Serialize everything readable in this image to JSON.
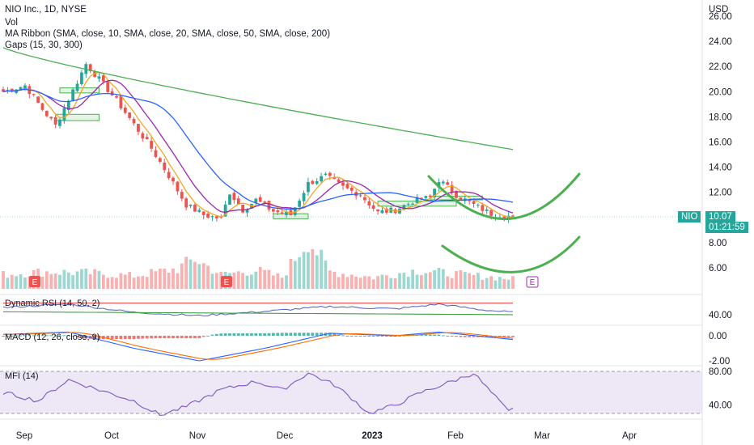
{
  "header": {
    "symbol_line": "NIO Inc., 1D, NYSE",
    "indicators": [
      "Vol",
      "MA Ribbon (SMA, close, 10, SMA, close, 20, SMA, close, 50, SMA, close, 200)",
      "Gaps (15, 30, 300)"
    ],
    "currency": "USD"
  },
  "price_tag": {
    "symbol": "NIO",
    "price": "10.07",
    "countdown": "01:21:59",
    "color": "#26a69a"
  },
  "earnings_marker": "E",
  "panes": {
    "rsi_label": "Dynamic RSI (14, 50, 2)",
    "macd_label": "MACD (12, 26, close, 9)",
    "mfi_label": "MFI (14)"
  },
  "colors": {
    "up": "#26a69a",
    "down": "#ef5350",
    "sma10": "#f5a623",
    "sma20": "#9c27b0",
    "sma50": "#2962ff",
    "sma200": "#4caf50",
    "annotation": "#4caf50"
  },
  "chart_data": {
    "type": "candlestick",
    "x_labels": [
      "Sep",
      "Oct",
      "Nov",
      "Dec",
      "2023",
      "Feb",
      "Mar",
      "Apr"
    ],
    "price_axis": {
      "ticks": [
        "26.00",
        "24.00",
        "22.00",
        "20.00",
        "18.00",
        "16.00",
        "14.00",
        "12.00",
        "10.00",
        "8.00",
        "6.00"
      ],
      "range": [
        4.9,
        26.0
      ]
    },
    "rsi_axis": {
      "ticks": [
        "40.00"
      ]
    },
    "macd_axis": {
      "ticks": [
        "0.00",
        "-2.00"
      ]
    },
    "mfi_axis": {
      "ticks": [
        "80.00",
        "40.00"
      ]
    },
    "bars": 118,
    "close_anchors": [
      [
        0,
        20.0
      ],
      [
        5,
        20.5
      ],
      [
        9,
        18.6
      ],
      [
        12,
        17.3
      ],
      [
        16,
        20.1
      ],
      [
        19,
        22.2
      ],
      [
        22,
        21.0
      ],
      [
        26,
        19.3
      ],
      [
        30,
        17.4
      ],
      [
        34,
        15.5
      ],
      [
        38,
        13.3
      ],
      [
        42,
        11.0
      ],
      [
        46,
        10.2
      ],
      [
        50,
        9.9
      ],
      [
        52,
        12.0
      ],
      [
        55,
        10.6
      ],
      [
        58,
        11.4
      ],
      [
        62,
        10.5
      ],
      [
        66,
        10.2
      ],
      [
        70,
        12.7
      ],
      [
        74,
        13.3
      ],
      [
        78,
        12.4
      ],
      [
        82,
        11.8
      ],
      [
        86,
        10.4
      ],
      [
        90,
        10.6
      ],
      [
        94,
        11.3
      ],
      [
        98,
        11.6
      ],
      [
        100,
        13.0
      ],
      [
        104,
        11.8
      ],
      [
        108,
        11.0
      ],
      [
        112,
        10.3
      ],
      [
        117,
        10.07
      ]
    ],
    "sma200_endpoints": [
      [
        0,
        23.5
      ],
      [
        117,
        15.4
      ]
    ],
    "volume_anchors": [
      [
        0,
        1.0
      ],
      [
        10,
        1.2
      ],
      [
        20,
        1.1
      ],
      [
        30,
        0.9
      ],
      [
        40,
        1.4
      ],
      [
        44,
        2.1
      ],
      [
        50,
        1.0
      ],
      [
        58,
        1.3
      ],
      [
        64,
        0.8
      ],
      [
        70,
        3.5
      ],
      [
        75,
        1.2
      ],
      [
        85,
        0.8
      ],
      [
        95,
        1.3
      ],
      [
        105,
        1.0
      ],
      [
        117,
        0.7
      ]
    ],
    "volume_max": 3.5,
    "rsi_anchors": [
      [
        0,
        55
      ],
      [
        15,
        62
      ],
      [
        30,
        45
      ],
      [
        45,
        38
      ],
      [
        60,
        47
      ],
      [
        75,
        57
      ],
      [
        90,
        52
      ],
      [
        100,
        62
      ],
      [
        110,
        50
      ],
      [
        117,
        45
      ]
    ],
    "rsi_band_upper": 64,
    "macd_anchors": [
      [
        0,
        0.1
      ],
      [
        15,
        0.3
      ],
      [
        30,
        -1.0
      ],
      [
        45,
        -2.0
      ],
      [
        60,
        -1.0
      ],
      [
        75,
        0.2
      ],
      [
        90,
        0.0
      ],
      [
        100,
        0.3
      ],
      [
        117,
        -0.3
      ]
    ],
    "mfi_anchors": [
      [
        0,
        55
      ],
      [
        8,
        45
      ],
      [
        15,
        70
      ],
      [
        22,
        58
      ],
      [
        30,
        45
      ],
      [
        36,
        28
      ],
      [
        42,
        38
      ],
      [
        50,
        58
      ],
      [
        58,
        68
      ],
      [
        64,
        58
      ],
      [
        70,
        78
      ],
      [
        76,
        64
      ],
      [
        80,
        48
      ],
      [
        84,
        30
      ],
      [
        90,
        40
      ],
      [
        96,
        55
      ],
      [
        104,
        70
      ],
      [
        108,
        78
      ],
      [
        112,
        55
      ],
      [
        116,
        32
      ],
      [
        117,
        35
      ]
    ],
    "mfi_band": [
      30,
      80
    ]
  }
}
